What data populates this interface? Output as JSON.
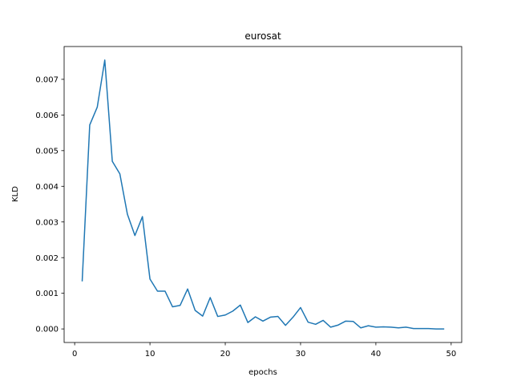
{
  "chart_data": {
    "type": "line",
    "title": "eurosat",
    "xlabel": "epochs",
    "ylabel": "KLD",
    "xlim": [
      -1.4,
      51.4
    ],
    "ylim": [
      -0.00038,
      0.00792
    ],
    "xticks": [
      0,
      10,
      20,
      30,
      40,
      50
    ],
    "yticks": [
      0.0,
      0.001,
      0.002,
      0.003,
      0.004,
      0.005,
      0.006,
      0.007
    ],
    "xtick_labels": [
      "0",
      "10",
      "20",
      "30",
      "40",
      "50"
    ],
    "ytick_labels": [
      "0.000",
      "0.001",
      "0.002",
      "0.003",
      "0.004",
      "0.005",
      "0.006",
      "0.007"
    ],
    "grid": false,
    "line_color": "#1f77b4",
    "series": [
      {
        "x": [
          1,
          2,
          3,
          4,
          5,
          6,
          7,
          8,
          9,
          10,
          11,
          12,
          13,
          14,
          15,
          16,
          17,
          18,
          19,
          20,
          21,
          22,
          23,
          24,
          25,
          26,
          27,
          28,
          29,
          30,
          31,
          32,
          33,
          34,
          35,
          36,
          37,
          38,
          39,
          40,
          41,
          42,
          43,
          44,
          45,
          46,
          47,
          48,
          49
        ],
        "values": [
          0.00135,
          0.00572,
          0.00622,
          0.00754,
          0.0047,
          0.00435,
          0.00322,
          0.00262,
          0.00315,
          0.0014,
          0.00106,
          0.00106,
          0.00062,
          0.00066,
          0.00112,
          0.00052,
          0.00036,
          0.00088,
          0.00035,
          0.00039,
          0.0005,
          0.00067,
          0.00018,
          0.00034,
          0.00022,
          0.00033,
          0.00035,
          0.0001,
          0.00033,
          0.0006,
          0.00019,
          0.00013,
          0.00024,
          5e-05,
          0.00011,
          0.00022,
          0.00021,
          3e-05,
          9e-05,
          5e-05,
          6e-05,
          5e-05,
          3e-05,
          5e-05,
          1e-05,
          1e-05,
          1e-05,
          0.0,
          0.0
        ]
      }
    ]
  }
}
